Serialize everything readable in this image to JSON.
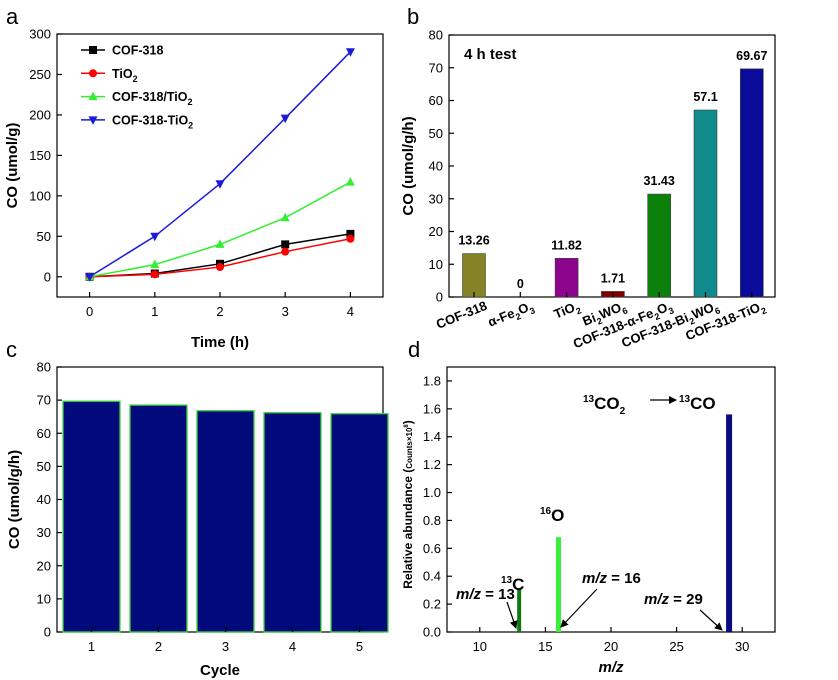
{
  "chart_data": [
    {
      "id": "a",
      "panel_label": "a",
      "type": "line",
      "xlabel": "Time (h)",
      "ylabel": "CO (umol/g)",
      "xlim": [
        -0.5,
        4.5
      ],
      "ylim": [
        -25,
        300
      ],
      "x": [
        0,
        1,
        2,
        3,
        4
      ],
      "xticks": [
        "0",
        "1",
        "2",
        "3",
        "4"
      ],
      "yticks": [
        "0",
        "50",
        "100",
        "150",
        "200",
        "250",
        "300"
      ],
      "legend_position": "top-left",
      "series": [
        {
          "name": "COF-318",
          "name_main": "COF-318",
          "name_sub": "",
          "name_tail": "",
          "marker": "square",
          "color": "#000000",
          "values": [
            0,
            4,
            16,
            40,
            53
          ]
        },
        {
          "name": "TiO2",
          "name_main": "TiO",
          "name_sub": "2",
          "name_tail": "",
          "marker": "circle",
          "color": "#ff0000",
          "values": [
            0,
            3,
            12,
            31,
            47
          ]
        },
        {
          "name": "COF-318/TiO2",
          "name_main": "COF-318/TiO",
          "name_sub": "2",
          "name_tail": "",
          "marker": "triangle-up",
          "color": "#33ee33",
          "values": [
            0,
            15,
            40,
            73,
            117
          ]
        },
        {
          "name": "COF-318-TiO2",
          "name_main": "COF-318-TiO",
          "name_sub": "2",
          "name_tail": "",
          "marker": "triangle-down",
          "color": "#1a1adb",
          "values": [
            0,
            50,
            115,
            196,
            278
          ]
        }
      ]
    },
    {
      "id": "b",
      "panel_label": "b",
      "type": "bar",
      "annotation": "4 h test",
      "ylabel": "CO (umol/g/h)",
      "ylim": [
        0,
        80
      ],
      "yticks": [
        "0",
        "10",
        "20",
        "30",
        "40",
        "50",
        "60",
        "70",
        "80"
      ],
      "categories": [
        {
          "main": "COF-318",
          "sub": "",
          "tail": "",
          "sub2": "",
          "tail2": ""
        },
        {
          "main": "α-Fe",
          "sub": "2",
          "tail": "O",
          "sub2": "3",
          "tail2": ""
        },
        {
          "main": "TiO",
          "sub": "2",
          "tail": "",
          "sub2": "",
          "tail2": ""
        },
        {
          "main": "Bi",
          "sub": "2",
          "tail": "WO",
          "sub2": "6",
          "tail2": ""
        },
        {
          "main": "COF-318-α-Fe",
          "sub": "2",
          "tail": "O",
          "sub2": "3",
          "tail2": ""
        },
        {
          "main": "COF-318-Bi",
          "sub": "2",
          "tail": "WO",
          "sub2": "6",
          "tail2": ""
        },
        {
          "main": "COF-318-TiO",
          "sub": "2",
          "tail": "",
          "sub2": "",
          "tail2": ""
        }
      ],
      "values": [
        13.26,
        0,
        11.82,
        1.71,
        31.43,
        57.1,
        69.67
      ],
      "value_labels": [
        "13.26",
        "0",
        "11.82",
        "1.71",
        "31.43",
        "57.1",
        "69.67"
      ],
      "colors": [
        "#868226",
        "#8a8a00",
        "#8b048b",
        "#800000",
        "#0b800b",
        "#108a8a",
        "#0b0b99"
      ]
    },
    {
      "id": "c",
      "panel_label": "c",
      "type": "bar",
      "xlabel": "Cycle",
      "ylabel": "CO (umol/g/h)",
      "ylim": [
        0,
        80
      ],
      "yticks": [
        "0",
        "10",
        "20",
        "30",
        "40",
        "50",
        "60",
        "70",
        "80"
      ],
      "categories": [
        "1",
        "2",
        "3",
        "4",
        "5"
      ],
      "values": [
        69.67,
        68.5,
        66.8,
        66.2,
        65.9
      ],
      "bar_color": "#000a7a",
      "edge_color": "#3cd43c"
    },
    {
      "id": "d",
      "panel_label": "d",
      "type": "bar",
      "xlabel": "m/z",
      "ylabel_main": "Relative abundance (",
      "ylabel_small": "Counts×10",
      "ylabel_sup": "8",
      "ylabel_end": ")",
      "xlim": [
        7.5,
        32.5
      ],
      "ylim": [
        0,
        1.9
      ],
      "xticks": [
        "10",
        "15",
        "20",
        "25",
        "30"
      ],
      "yticks": [
        "0.0",
        "0.2",
        "0.4",
        "0.6",
        "0.8",
        "1.0",
        "1.2",
        "1.4",
        "1.6",
        "1.8"
      ],
      "x": [
        13,
        16,
        29
      ],
      "values": [
        0.31,
        0.68,
        1.56
      ],
      "colors": [
        "#0d7a0d",
        "#3bf03b",
        "#0b0b80"
      ],
      "annotations": {
        "c13_sup": "13",
        "c13_main": "C",
        "o16_sup": "16",
        "o16_main": "O",
        "co2_sup": "13",
        "co2_main": "CO",
        "co2_sub": "2",
        "co_sup": "13",
        "co_main": "CO",
        "mz_italic": "m/z",
        "mz13_value": " = 13",
        "mz16_value": " = 16",
        "mz29_value": " = 29"
      }
    }
  ]
}
